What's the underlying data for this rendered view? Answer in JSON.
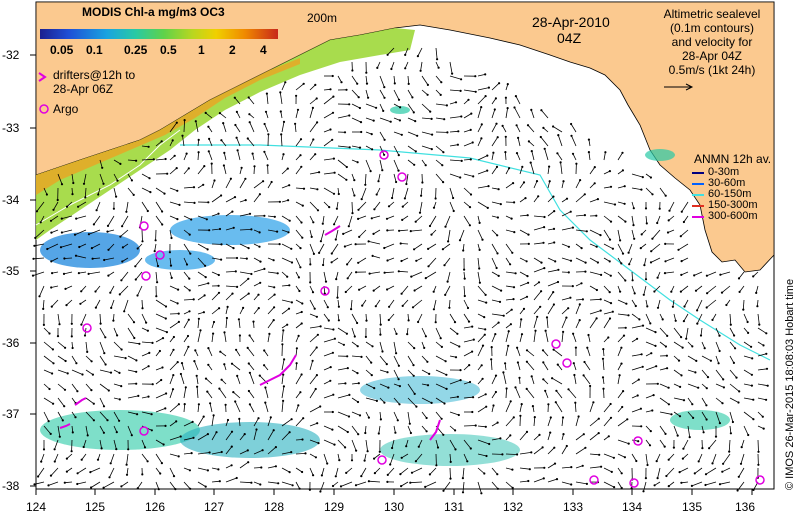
{
  "map": {
    "title_colorbar": "MODIS Chl-a mg/m3 OC3",
    "colorbar_ticks": [
      "0.05",
      "0.1",
      "0.25",
      "0.5",
      "1",
      "2",
      "4"
    ],
    "isobath_label": "200m",
    "date": "28-Apr-2010",
    "time": "04Z",
    "drifters_label_line1": "drifters@12h to",
    "drifters_label_line2": "28-Apr 06Z",
    "argo_label": "Argo",
    "altimetry_lines": [
      "Altimetric sealevel",
      "(0.1m contours)",
      "and velocity for",
      "28-Apr 04Z",
      "0.5m/s (1kt 24h)"
    ],
    "anmn_title": "ANMN 12h av.",
    "anmn_legend": [
      {
        "label": "0-30m",
        "color": "#000080"
      },
      {
        "label": "30-60m",
        "color": "#0060ff"
      },
      {
        "label": "60-150m",
        "color": "#40e0e0"
      },
      {
        "label": "150-300m",
        "color": "#e03020"
      },
      {
        "label": "300-600m",
        "color": "#e000e0"
      }
    ],
    "copyright": "© IMOS 26-Mar-2015 18:08:03 Hobart time",
    "x_axis_ticks": [
      "124",
      "125",
      "126",
      "127",
      "128",
      "129",
      "130",
      "131",
      "132",
      "133",
      "134",
      "135",
      "136"
    ],
    "y_axis_ticks": [
      "-32",
      "-33",
      "-34",
      "-35",
      "-36",
      "-37",
      "-38"
    ],
    "colors": {
      "land": "#fbc98f",
      "isobath": "#40e0e0",
      "argo": "#e000e0"
    }
  }
}
